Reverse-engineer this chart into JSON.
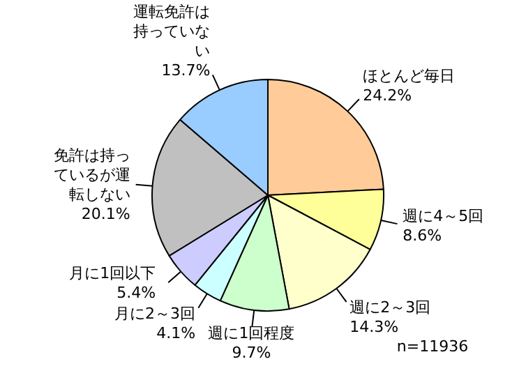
{
  "chart_data": {
    "type": "pie",
    "categories": [
      "ほとんど毎日",
      "週に4～5回",
      "週に2～3回",
      "週に1回程度",
      "月に2～3回",
      "月に1回以下",
      "免許は持っているが運転しない",
      "運転免許は持っていない"
    ],
    "values": [
      24.2,
      8.6,
      14.3,
      9.7,
      4.1,
      5.4,
      20.1,
      13.7
    ],
    "value_labels": [
      "24.2%",
      "8.6%",
      "14.3%",
      "9.7%",
      "4.1%",
      "5.4%",
      "20.1%",
      "13.7%"
    ],
    "colors": [
      "#ffcc99",
      "#ffff99",
      "#ffffcc",
      "#ccffcc",
      "#ccffff",
      "#ccccff",
      "#c0c0c0",
      "#99ccff"
    ],
    "annotations": [
      "n=11936"
    ]
  }
}
